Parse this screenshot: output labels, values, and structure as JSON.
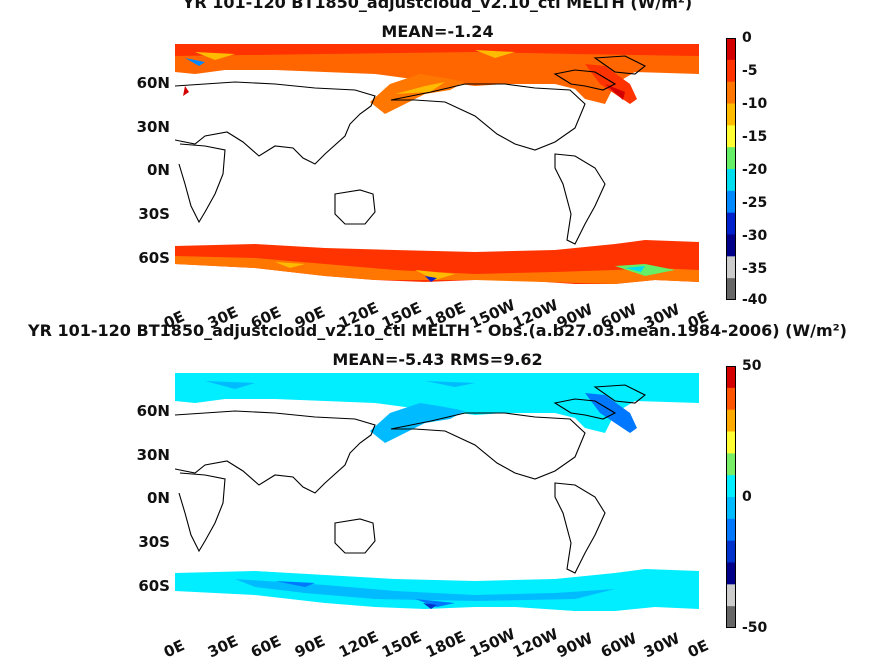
{
  "panel_top": {
    "title": "YR 101-120 BT1850_adjustcloud_v2.10_ctl  MELTH (W/m²)",
    "subtitle": "MEAN=-1.24",
    "lat_labels": [
      "60N",
      "30N",
      "0N",
      "30S",
      "60S"
    ],
    "lon_labels": [
      "0E",
      "30E",
      "60E",
      "90E",
      "120E",
      "150E",
      "180E",
      "150W",
      "120W",
      "90W",
      "60W",
      "30W",
      "0E"
    ],
    "colorbar_ticks": [
      "0",
      "-5",
      "-10",
      "-15",
      "-20",
      "-25",
      "-30",
      "-35",
      "-40"
    ],
    "colorbar_colors": [
      "#d40000",
      "#ff3300",
      "#ff7700",
      "#ffbb00",
      "#ffff33",
      "#66ee66",
      "#00ddee",
      "#0088ff",
      "#0022cc",
      "#000088",
      "#cccccc",
      "#666666"
    ]
  },
  "panel_bottom": {
    "title": "YR 101-120 BT1850_adjustcloud_v2.10_ctl MELTH - Obs.(a.b27.03.mean.1984-2006) (W/m²)",
    "subtitle": "MEAN=-5.43 RMS=9.62",
    "lat_labels": [
      "60N",
      "30N",
      "0N",
      "30S",
      "60S"
    ],
    "lon_labels": [
      "0E",
      "30E",
      "60E",
      "90E",
      "120E",
      "150E",
      "180E",
      "150W",
      "120W",
      "90W",
      "60W",
      "30W",
      "0E"
    ],
    "colorbar_ticks": [
      "50",
      "0",
      "-50"
    ],
    "colorbar_colors": [
      "#d40000",
      "#ff5500",
      "#ffaa00",
      "#ffff33",
      "#77ee66",
      "#00eeff",
      "#00bbff",
      "#0077ff",
      "#0033cc",
      "#000088",
      "#cccccc",
      "#666666"
    ]
  }
}
